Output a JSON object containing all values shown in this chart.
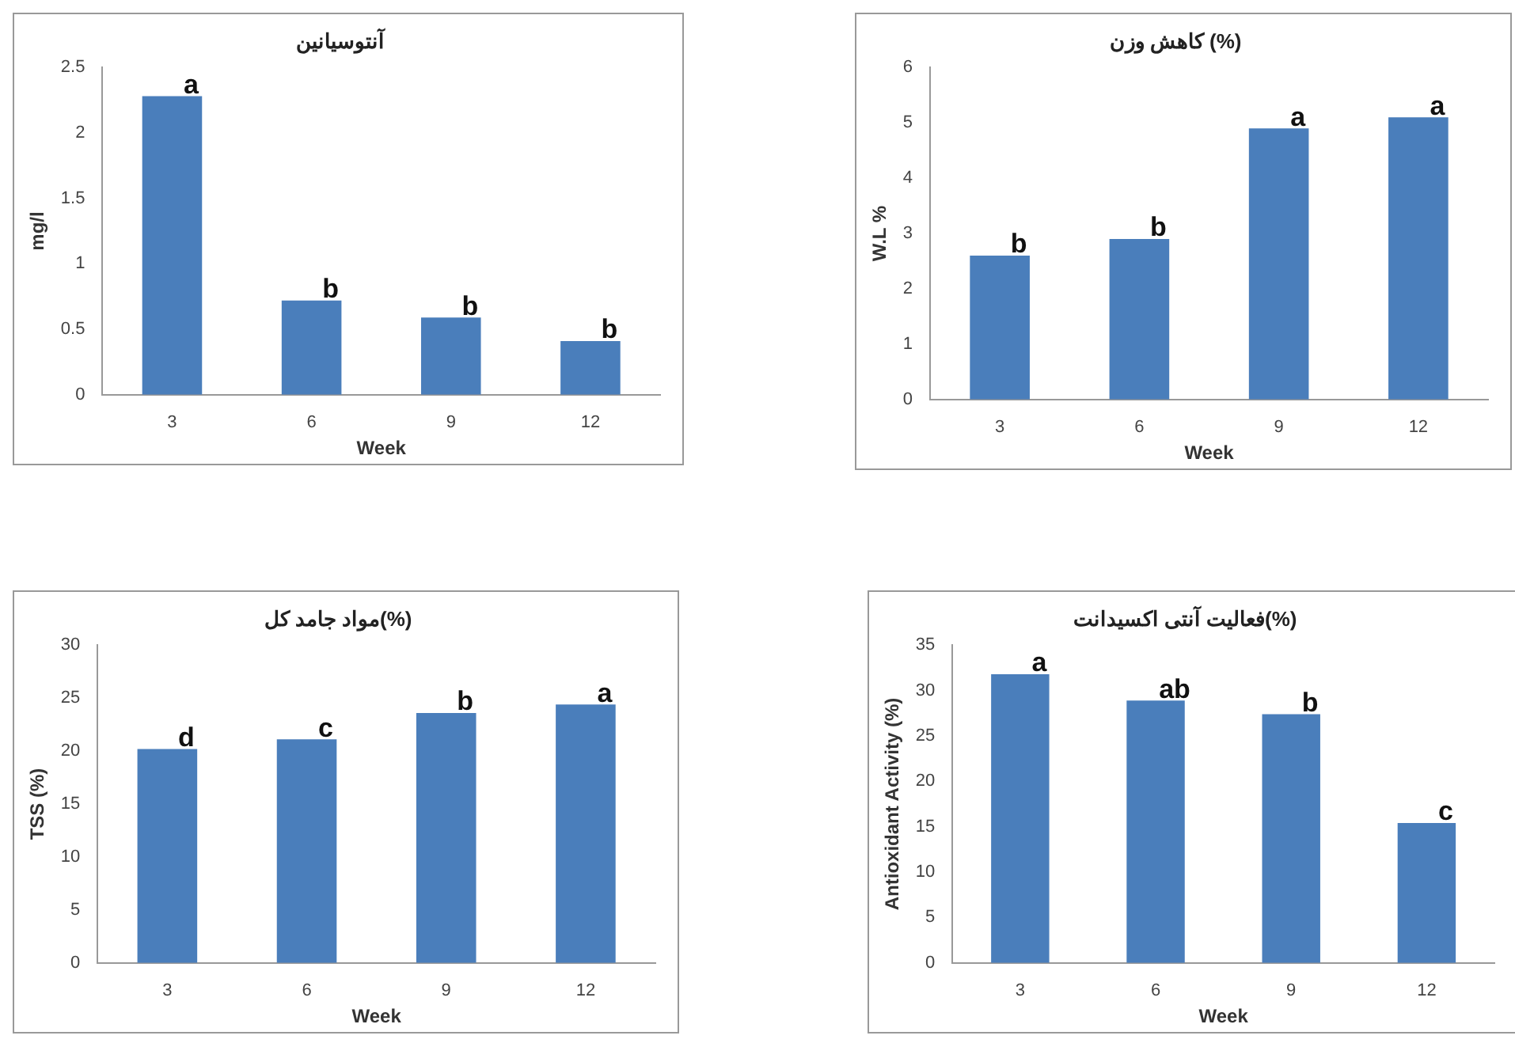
{
  "chart_data": [
    {
      "type": "bar",
      "title": "آنتوسیانین",
      "xlabel": "Week",
      "ylabel": "mg/l",
      "categories": [
        "3",
        "6",
        "9",
        "12"
      ],
      "values": [
        2.28,
        0.72,
        0.59,
        0.41
      ],
      "color": "#4a7ebb",
      "ylim": [
        0,
        2.5
      ],
      "yticks": [
        0,
        0.5,
        1,
        1.5,
        2,
        2.5
      ],
      "grid": false,
      "legend": false,
      "annotations": [
        {
          "text": "a",
          "x": "3",
          "y": 2.28
        },
        {
          "text": "b",
          "x": "6",
          "y": 0.72
        },
        {
          "text": "b",
          "x": "9",
          "y": 0.59
        },
        {
          "text": "b",
          "x": "12",
          "y": 0.41
        }
      ]
    },
    {
      "type": "bar",
      "title": "کاهش وزن (%)",
      "xlabel": "Week",
      "ylabel": "W.L %",
      "categories": [
        "3",
        "6",
        "9",
        "12"
      ],
      "values": [
        2.6,
        2.9,
        4.9,
        5.1
      ],
      "color": "#4a7ebb",
      "ylim": [
        0,
        6
      ],
      "yticks": [
        0,
        1,
        2,
        3,
        4,
        5,
        6
      ],
      "grid": false,
      "legend": false,
      "annotations": [
        {
          "text": "b",
          "x": "3",
          "y": 2.6
        },
        {
          "text": "b",
          "x": "6",
          "y": 2.9
        },
        {
          "text": "a",
          "x": "9",
          "y": 4.9
        },
        {
          "text": "a",
          "x": "12",
          "y": 5.1
        }
      ]
    },
    {
      "type": "bar",
      "title": "مواد جامد کل(%)",
      "xlabel": "Week",
      "ylabel": "TSS (%)",
      "categories": [
        "3",
        "6",
        "9",
        "12"
      ],
      "values": [
        20.2,
        21.1,
        23.6,
        24.4
      ],
      "color": "#4a7ebb",
      "ylim": [
        0,
        30
      ],
      "yticks": [
        0,
        5,
        10,
        15,
        20,
        25,
        30
      ],
      "grid": false,
      "legend": false,
      "annotations": [
        {
          "text": "d",
          "x": "3",
          "y": 20.2
        },
        {
          "text": "c",
          "x": "6",
          "y": 21.1
        },
        {
          "text": "b",
          "x": "9",
          "y": 23.6
        },
        {
          "text": "a",
          "x": "12",
          "y": 24.4
        }
      ]
    },
    {
      "type": "bar",
      "title": "فعالیت آنتی اکسیدانت(%)",
      "xlabel": "Week",
      "ylabel": "Antioxidant Activity (%)",
      "categories": [
        "3",
        "6",
        "9",
        "12"
      ],
      "values": [
        31.8,
        28.9,
        27.4,
        15.4
      ],
      "color": "#4a7ebb",
      "ylim": [
        0,
        35
      ],
      "yticks": [
        0,
        5,
        10,
        15,
        20,
        25,
        30,
        35
      ],
      "grid": false,
      "legend": false,
      "annotations": [
        {
          "text": "a",
          "x": "3",
          "y": 31.8
        },
        {
          "text": "ab",
          "x": "6",
          "y": 28.9
        },
        {
          "text": "b",
          "x": "9",
          "y": 27.4
        },
        {
          "text": "c",
          "x": "12",
          "y": 15.4
        }
      ]
    }
  ]
}
